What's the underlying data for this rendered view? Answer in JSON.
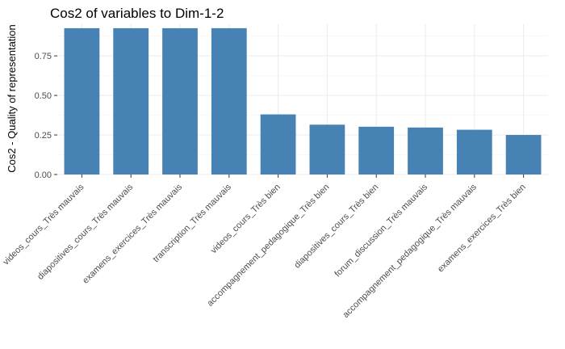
{
  "chart_data": {
    "type": "bar",
    "title": "Cos2 of variables to Dim-1-2",
    "xlabel": "",
    "ylabel": "Cos2 - Quality of representation",
    "categories": [
      "videos_cours_Très mauvais",
      "diapositives_cours_Très mauvais",
      "examens_exercices_Très mauvais",
      "transcription_Très mauvais",
      "videos_cours_Très bien",
      "accompagnement_pedagogique_Très bien",
      "diapositives_cours_Très bien",
      "forum_discussion_Très mauvais",
      "accompagnement_pedagogique_Très mauvais",
      "examens_exercices_Très bien"
    ],
    "values": [
      0.925,
      0.925,
      0.925,
      0.925,
      0.38,
      0.315,
      0.302,
      0.297,
      0.283,
      0.25
    ],
    "ylim": [
      0,
      0.95
    ],
    "yticks": [
      0.0,
      0.25,
      0.5,
      0.75
    ],
    "ytick_labels": [
      "0.00",
      "0.25",
      "0.50",
      "0.75"
    ],
    "bar_color": "#4682B4",
    "grid": true,
    "legend": "none"
  }
}
